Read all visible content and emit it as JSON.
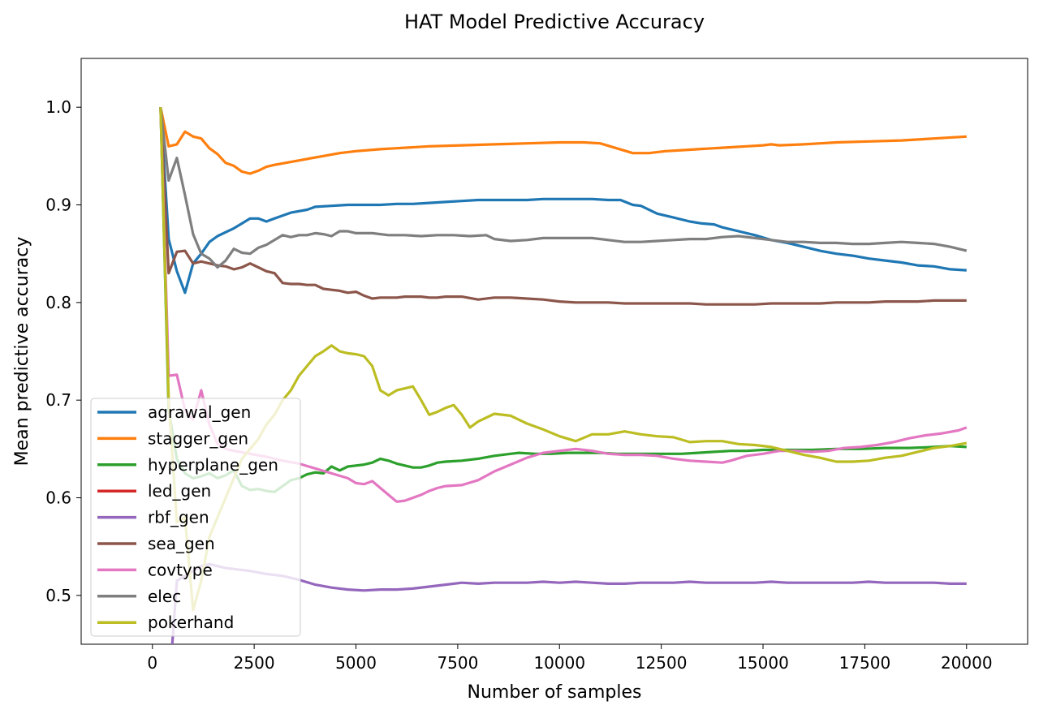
{
  "chart_data": {
    "type": "line",
    "title": "HAT Model Predictive Accuracy",
    "xlabel": "Number of samples",
    "ylabel": "Mean predictive accuracy",
    "xlim": [
      -1750,
      21500
    ],
    "ylim": [
      0.45,
      1.05
    ],
    "xticks": [
      0,
      2500,
      5000,
      7500,
      10000,
      12500,
      15000,
      17500,
      20000
    ],
    "xtick_labels": [
      "0",
      "2500",
      "5000",
      "7500",
      "10000",
      "12500",
      "15000",
      "17500",
      "20000"
    ],
    "yticks": [
      0.5,
      0.6,
      0.7,
      0.8,
      0.9,
      1.0
    ],
    "ytick_labels": [
      "0.5",
      "0.6",
      "0.7",
      "0.8",
      "0.9",
      "1.0"
    ],
    "grid": false,
    "legend_position": "lower-left",
    "series": [
      {
        "name": "agrawal_gen",
        "color": "#1f77b4",
        "x": [
          200,
          400,
          600,
          800,
          1000,
          1200,
          1400,
          1600,
          1800,
          2000,
          2200,
          2400,
          2600,
          2800,
          3000,
          3400,
          3800,
          4000,
          4400,
          4800,
          5000,
          5600,
          6000,
          6400,
          6800,
          7200,
          7600,
          8000,
          8400,
          8800,
          9200,
          9600,
          10000,
          10200,
          10500,
          10800,
          11200,
          11500,
          11800,
          12000,
          12400,
          12800,
          13200,
          13500,
          13800,
          14000,
          14400,
          14800,
          15200,
          15600,
          16000,
          16400,
          16800,
          17200,
          17600,
          18000,
          18400,
          18800,
          19200,
          19600,
          20000
        ],
        "y": [
          1.0,
          0.865,
          0.832,
          0.81,
          0.84,
          0.85,
          0.862,
          0.868,
          0.872,
          0.876,
          0.881,
          0.886,
          0.886,
          0.883,
          0.886,
          0.892,
          0.895,
          0.898,
          0.899,
          0.9,
          0.9,
          0.9,
          0.901,
          0.901,
          0.902,
          0.903,
          0.904,
          0.905,
          0.905,
          0.905,
          0.905,
          0.906,
          0.906,
          0.906,
          0.906,
          0.906,
          0.905,
          0.905,
          0.9,
          0.899,
          0.891,
          0.887,
          0.883,
          0.881,
          0.88,
          0.877,
          0.873,
          0.869,
          0.864,
          0.861,
          0.857,
          0.853,
          0.85,
          0.848,
          0.845,
          0.843,
          0.841,
          0.838,
          0.837,
          0.834,
          0.833
        ]
      },
      {
        "name": "stagger_gen",
        "color": "#ff7f0e",
        "x": [
          200,
          400,
          600,
          800,
          1000,
          1200,
          1400,
          1600,
          1800,
          2000,
          2200,
          2400,
          2600,
          2800,
          3000,
          3400,
          3800,
          4200,
          4600,
          5000,
          5600,
          6000,
          6800,
          7600,
          8400,
          9200,
          10000,
          10600,
          11000,
          11400,
          11800,
          12200,
          12600,
          13000,
          13400,
          13800,
          14200,
          14600,
          15000,
          15200,
          15400,
          16000,
          16800,
          17600,
          18400,
          19200,
          20000
        ],
        "y": [
          1.0,
          0.96,
          0.962,
          0.975,
          0.97,
          0.968,
          0.958,
          0.952,
          0.943,
          0.94,
          0.934,
          0.932,
          0.935,
          0.939,
          0.941,
          0.944,
          0.947,
          0.95,
          0.953,
          0.955,
          0.957,
          0.958,
          0.96,
          0.961,
          0.962,
          0.963,
          0.964,
          0.964,
          0.963,
          0.958,
          0.953,
          0.953,
          0.955,
          0.956,
          0.957,
          0.958,
          0.959,
          0.96,
          0.961,
          0.962,
          0.961,
          0.962,
          0.964,
          0.965,
          0.966,
          0.968,
          0.97
        ]
      },
      {
        "name": "hyperplane_gen",
        "color": "#2ca02c",
        "x": [
          200,
          400,
          600,
          800,
          1000,
          1200,
          1400,
          1600,
          1800,
          2000,
          2200,
          2400,
          2600,
          2800,
          3000,
          3200,
          3400,
          3600,
          3800,
          4000,
          4200,
          4400,
          4600,
          4800,
          5000,
          5200,
          5400,
          5600,
          5800,
          6000,
          6200,
          6400,
          6600,
          6800,
          7000,
          7200,
          7600,
          8000,
          8400,
          8800,
          9000,
          9400,
          9800,
          10200,
          10600,
          11000,
          11400,
          11800,
          12200,
          12600,
          13000,
          13400,
          13800,
          14200,
          14600,
          15000,
          15600,
          16200,
          16800,
          17400,
          18000,
          18600,
          19200,
          19600,
          20000
        ],
        "y": [
          1.0,
          0.69,
          0.64,
          0.625,
          0.62,
          0.622,
          0.625,
          0.62,
          0.623,
          0.628,
          0.612,
          0.608,
          0.609,
          0.607,
          0.606,
          0.612,
          0.618,
          0.62,
          0.624,
          0.626,
          0.625,
          0.632,
          0.628,
          0.632,
          0.633,
          0.634,
          0.636,
          0.64,
          0.638,
          0.635,
          0.633,
          0.631,
          0.631,
          0.633,
          0.636,
          0.637,
          0.638,
          0.64,
          0.643,
          0.645,
          0.646,
          0.645,
          0.645,
          0.646,
          0.646,
          0.646,
          0.645,
          0.645,
          0.645,
          0.645,
          0.645,
          0.646,
          0.647,
          0.648,
          0.648,
          0.649,
          0.649,
          0.649,
          0.65,
          0.65,
          0.651,
          0.651,
          0.652,
          0.653,
          0.652
        ]
      },
      {
        "name": "led_gen",
        "color": "#d62728",
        "x": [],
        "y": []
      },
      {
        "name": "rbf_gen",
        "color": "#9467bd",
        "x": [
          200,
          400,
          600,
          800,
          1000,
          1200,
          1400,
          1600,
          1800,
          2000,
          2400,
          2800,
          3200,
          3600,
          4000,
          4400,
          4800,
          5200,
          5600,
          6000,
          6400,
          6800,
          7200,
          7600,
          8000,
          8400,
          8800,
          9200,
          9600,
          10000,
          10400,
          10800,
          11200,
          11600,
          12000,
          12400,
          12800,
          13200,
          13600,
          14000,
          14400,
          14800,
          15200,
          15600,
          16000,
          16400,
          16800,
          17200,
          17600,
          18000,
          18400,
          18800,
          19200,
          19600,
          20000
        ],
        "y": [
          0.42,
          0.4,
          0.515,
          0.52,
          0.525,
          0.53,
          0.532,
          0.53,
          0.528,
          0.527,
          0.525,
          0.522,
          0.52,
          0.516,
          0.511,
          0.508,
          0.506,
          0.505,
          0.506,
          0.506,
          0.507,
          0.509,
          0.511,
          0.513,
          0.512,
          0.513,
          0.513,
          0.513,
          0.514,
          0.513,
          0.514,
          0.513,
          0.512,
          0.512,
          0.513,
          0.513,
          0.513,
          0.514,
          0.513,
          0.513,
          0.513,
          0.513,
          0.514,
          0.513,
          0.513,
          0.513,
          0.513,
          0.513,
          0.514,
          0.513,
          0.513,
          0.513,
          0.513,
          0.512,
          0.512
        ]
      },
      {
        "name": "sea_gen",
        "color": "#8c564b",
        "x": [
          200,
          400,
          600,
          800,
          1000,
          1200,
          1400,
          1600,
          1800,
          2000,
          2200,
          2400,
          2600,
          2800,
          3000,
          3200,
          3400,
          3600,
          3800,
          4000,
          4200,
          4400,
          4600,
          4800,
          5000,
          5200,
          5400,
          5600,
          5800,
          6000,
          6200,
          6400,
          6600,
          6800,
          7000,
          7200,
          7600,
          8000,
          8400,
          8800,
          9200,
          9600,
          10000,
          10400,
          10800,
          11200,
          11600,
          12000,
          12400,
          12800,
          13200,
          13600,
          14000,
          14400,
          14800,
          15200,
          15600,
          16000,
          16400,
          16800,
          17200,
          17600,
          18000,
          18400,
          18800,
          19200,
          19600,
          20000
        ],
        "y": [
          1.0,
          0.83,
          0.852,
          0.853,
          0.84,
          0.842,
          0.84,
          0.838,
          0.837,
          0.834,
          0.836,
          0.84,
          0.836,
          0.832,
          0.83,
          0.82,
          0.819,
          0.819,
          0.818,
          0.818,
          0.814,
          0.813,
          0.812,
          0.81,
          0.811,
          0.807,
          0.804,
          0.805,
          0.805,
          0.805,
          0.806,
          0.806,
          0.806,
          0.805,
          0.805,
          0.806,
          0.806,
          0.803,
          0.805,
          0.805,
          0.804,
          0.803,
          0.801,
          0.8,
          0.8,
          0.8,
          0.799,
          0.799,
          0.799,
          0.799,
          0.799,
          0.798,
          0.798,
          0.798,
          0.798,
          0.799,
          0.799,
          0.799,
          0.799,
          0.8,
          0.8,
          0.8,
          0.801,
          0.801,
          0.801,
          0.802,
          0.802,
          0.802
        ]
      },
      {
        "name": "covtype",
        "color": "#e377c2",
        "x": [
          200,
          400,
          600,
          800,
          1000,
          1200,
          1400,
          1600,
          1800,
          2000,
          2400,
          2800,
          3200,
          3600,
          4000,
          4400,
          4800,
          5000,
          5200,
          5400,
          5600,
          5800,
          6000,
          6200,
          6400,
          6600,
          6800,
          7000,
          7200,
          7600,
          8000,
          8400,
          8800,
          9200,
          9600,
          10000,
          10400,
          10800,
          11200,
          11600,
          12000,
          12400,
          12800,
          13200,
          13600,
          14000,
          14200,
          14600,
          15000,
          15400,
          15800,
          16200,
          16600,
          17000,
          17400,
          17800,
          18200,
          18600,
          19000,
          19400,
          19800,
          20000
        ],
        "y": [
          1.0,
          0.725,
          0.726,
          0.69,
          0.68,
          0.71,
          0.675,
          0.655,
          0.65,
          0.648,
          0.645,
          0.642,
          0.638,
          0.635,
          0.63,
          0.625,
          0.62,
          0.615,
          0.614,
          0.617,
          0.61,
          0.603,
          0.596,
          0.597,
          0.6,
          0.603,
          0.607,
          0.61,
          0.612,
          0.613,
          0.618,
          0.627,
          0.634,
          0.641,
          0.646,
          0.648,
          0.65,
          0.648,
          0.645,
          0.644,
          0.644,
          0.643,
          0.64,
          0.638,
          0.637,
          0.636,
          0.638,
          0.643,
          0.645,
          0.648,
          0.648,
          0.647,
          0.648,
          0.651,
          0.652,
          0.654,
          0.657,
          0.661,
          0.664,
          0.666,
          0.669,
          0.672
        ]
      },
      {
        "name": "elec",
        "color": "#7f7f7f",
        "x": [
          200,
          400,
          600,
          800,
          1000,
          1200,
          1400,
          1600,
          1800,
          2000,
          2200,
          2400,
          2600,
          2800,
          3000,
          3200,
          3400,
          3600,
          3800,
          4000,
          4200,
          4400,
          4600,
          4800,
          5000,
          5400,
          5800,
          6200,
          6600,
          7000,
          7400,
          7800,
          8200,
          8400,
          8800,
          9200,
          9600,
          10000,
          10400,
          10800,
          11200,
          11600,
          12000,
          12400,
          12800,
          13200,
          13600,
          14000,
          14400,
          14800,
          15200,
          15600,
          16000,
          16400,
          16800,
          17200,
          17600,
          18000,
          18400,
          18800,
          19200,
          19600,
          20000
        ],
        "y": [
          1.0,
          0.925,
          0.948,
          0.91,
          0.87,
          0.85,
          0.845,
          0.836,
          0.843,
          0.855,
          0.851,
          0.85,
          0.856,
          0.859,
          0.864,
          0.869,
          0.867,
          0.869,
          0.869,
          0.871,
          0.87,
          0.868,
          0.873,
          0.873,
          0.871,
          0.871,
          0.869,
          0.869,
          0.868,
          0.869,
          0.869,
          0.868,
          0.869,
          0.865,
          0.863,
          0.864,
          0.866,
          0.866,
          0.866,
          0.866,
          0.864,
          0.862,
          0.862,
          0.863,
          0.864,
          0.865,
          0.865,
          0.867,
          0.868,
          0.866,
          0.864,
          0.862,
          0.862,
          0.861,
          0.861,
          0.86,
          0.86,
          0.861,
          0.862,
          0.861,
          0.86,
          0.857,
          0.853
        ]
      },
      {
        "name": "pokerhand",
        "color": "#bcbd22",
        "x": [
          200,
          400,
          600,
          800,
          1000,
          1200,
          1400,
          1600,
          1800,
          2000,
          2200,
          2400,
          2600,
          2800,
          3000,
          3200,
          3400,
          3600,
          3800,
          4000,
          4200,
          4400,
          4600,
          4800,
          5000,
          5200,
          5400,
          5600,
          5800,
          6000,
          6200,
          6400,
          6600,
          6800,
          7000,
          7200,
          7400,
          7600,
          7800,
          8000,
          8400,
          8800,
          9200,
          9600,
          10000,
          10400,
          10800,
          11200,
          11600,
          12000,
          12400,
          12800,
          13200,
          13600,
          14000,
          14400,
          14800,
          15200,
          15600,
          16000,
          16400,
          16800,
          17200,
          17600,
          18000,
          18400,
          18800,
          19200,
          19600,
          20000
        ],
        "y": [
          1.0,
          0.7,
          0.575,
          0.58,
          0.485,
          0.515,
          0.56,
          0.58,
          0.6,
          0.62,
          0.64,
          0.65,
          0.66,
          0.675,
          0.685,
          0.7,
          0.71,
          0.725,
          0.735,
          0.745,
          0.75,
          0.756,
          0.75,
          0.748,
          0.747,
          0.745,
          0.735,
          0.71,
          0.705,
          0.71,
          0.712,
          0.714,
          0.7,
          0.685,
          0.688,
          0.692,
          0.695,
          0.685,
          0.672,
          0.678,
          0.686,
          0.684,
          0.676,
          0.67,
          0.663,
          0.658,
          0.665,
          0.665,
          0.668,
          0.665,
          0.663,
          0.662,
          0.657,
          0.658,
          0.658,
          0.655,
          0.654,
          0.652,
          0.648,
          0.644,
          0.641,
          0.637,
          0.637,
          0.638,
          0.641,
          0.643,
          0.647,
          0.651,
          0.653,
          0.656
        ]
      }
    ]
  }
}
